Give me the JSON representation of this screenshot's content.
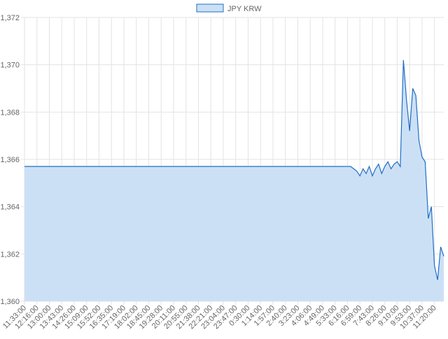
{
  "chart_data": {
    "type": "line",
    "categories": [
      "11:33:00",
      null,
      null,
      null,
      "12:16:00",
      null,
      null,
      null,
      "13:00:00",
      null,
      null,
      null,
      "13:43:00",
      null,
      null,
      null,
      "14:26:00",
      null,
      null,
      null,
      "15:09:00",
      null,
      null,
      null,
      "15:52:00",
      null,
      null,
      null,
      "16:35:00",
      null,
      null,
      null,
      "17:19:00",
      null,
      null,
      null,
      "18:02:00",
      null,
      null,
      null,
      "18:45:00",
      null,
      null,
      null,
      "19:28:00",
      null,
      null,
      null,
      "20:11:00",
      null,
      null,
      null,
      "20:55:00",
      null,
      null,
      null,
      "21:38:00",
      null,
      null,
      null,
      "22:21:00",
      null,
      null,
      null,
      "23:04:00",
      null,
      null,
      null,
      "23:47:00",
      null,
      null,
      null,
      "0:30:00",
      null,
      null,
      null,
      "1:14:00",
      null,
      null,
      null,
      "1:57:00",
      null,
      null,
      null,
      "2:40:00",
      null,
      null,
      null,
      "3:23:00",
      null,
      null,
      null,
      "4:06:00",
      null,
      null,
      null,
      "4:49:00",
      null,
      null,
      null,
      "5:33:00",
      null,
      null,
      null,
      "6:16:00",
      null,
      null,
      null,
      "6:59:00",
      null,
      null,
      null,
      "7:43:00",
      null,
      null,
      null,
      "8:26:00",
      null,
      null,
      null,
      "9:10:00",
      null,
      null,
      null,
      "9:53:00",
      null,
      null,
      null,
      "10:37:00",
      null,
      null,
      null,
      "11:20:00",
      null,
      null,
      null
    ],
    "series": [
      {
        "name": "JPY KRW",
        "color": "#1f6fc5",
        "fill": "#cce0f5",
        "values": [
          1365.7,
          1365.7,
          1365.7,
          1365.7,
          1365.7,
          1365.7,
          1365.7,
          1365.7,
          1365.7,
          1365.7,
          1365.7,
          1365.7,
          1365.7,
          1365.7,
          1365.7,
          1365.7,
          1365.7,
          1365.7,
          1365.7,
          1365.7,
          1365.7,
          1365.7,
          1365.7,
          1365.7,
          1365.7,
          1365.7,
          1365.7,
          1365.7,
          1365.7,
          1365.7,
          1365.7,
          1365.7,
          1365.7,
          1365.7,
          1365.7,
          1365.7,
          1365.7,
          1365.7,
          1365.7,
          1365.7,
          1365.7,
          1365.7,
          1365.7,
          1365.7,
          1365.7,
          1365.7,
          1365.7,
          1365.7,
          1365.7,
          1365.7,
          1365.7,
          1365.7,
          1365.7,
          1365.7,
          1365.7,
          1365.7,
          1365.7,
          1365.7,
          1365.7,
          1365.7,
          1365.7,
          1365.7,
          1365.7,
          1365.7,
          1365.7,
          1365.7,
          1365.7,
          1365.7,
          1365.7,
          1365.7,
          1365.7,
          1365.7,
          1365.7,
          1365.7,
          1365.7,
          1365.7,
          1365.7,
          1365.7,
          1365.7,
          1365.7,
          1365.7,
          1365.7,
          1365.7,
          1365.7,
          1365.7,
          1365.7,
          1365.7,
          1365.7,
          1365.7,
          1365.7,
          1365.7,
          1365.7,
          1365.7,
          1365.7,
          1365.7,
          1365.7,
          1365.7,
          1365.7,
          1365.7,
          1365.7,
          1365.7,
          1365.7,
          1365.7,
          1365.7,
          1365.7,
          1365.7,
          1365.6,
          1365.5,
          1365.3,
          1365.6,
          1365.4,
          1365.7,
          1365.3,
          1365.6,
          1365.8,
          1365.4,
          1365.7,
          1365.9,
          1365.6,
          1365.8,
          1365.9,
          1365.7,
          1370.2,
          1368.5,
          1367.2,
          1369.0,
          1368.7,
          1366.8,
          1366.1,
          1365.9,
          1363.5,
          1364.0,
          1361.5,
          1360.9,
          1362.3,
          1361.9
        ]
      }
    ],
    "ylim": [
      1360,
      1372
    ],
    "yticks": [
      {
        "value": 1360,
        "label": "1,360"
      },
      {
        "value": 1362,
        "label": "1,362"
      },
      {
        "value": 1364,
        "label": "1,364"
      },
      {
        "value": 1366,
        "label": "1,366"
      },
      {
        "value": 1368,
        "label": "1,368"
      },
      {
        "value": 1370,
        "label": "1,370"
      },
      {
        "value": 1372,
        "label": "1,372"
      }
    ],
    "grid": true,
    "legend": "top"
  }
}
